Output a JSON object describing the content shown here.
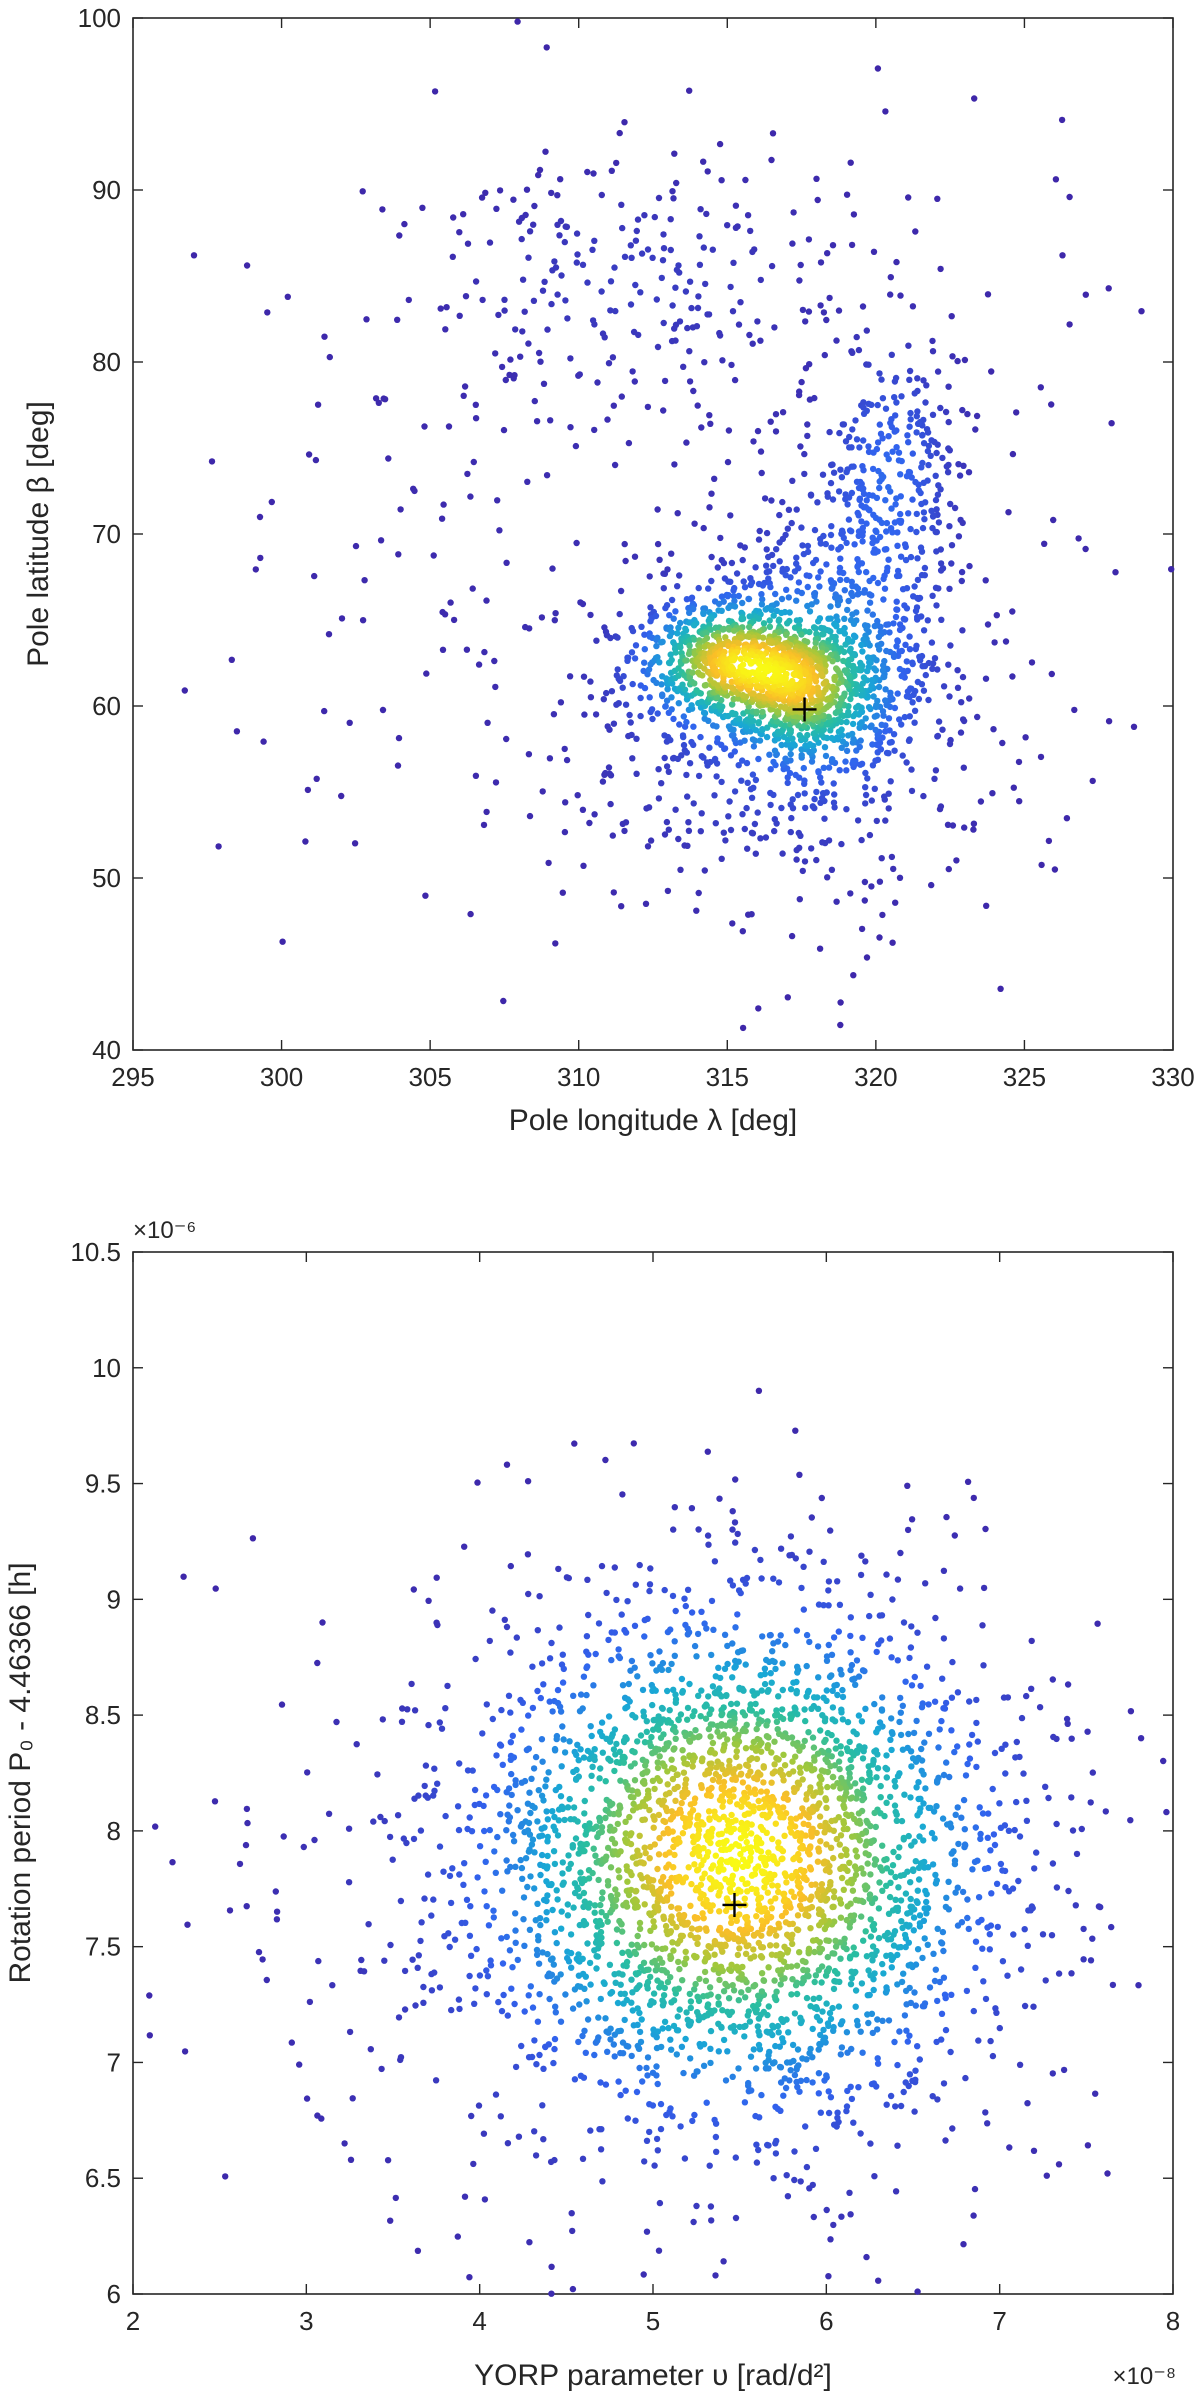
{
  "chart_data": [
    {
      "type": "scatter",
      "title": "",
      "xlabel": "Pole longitude λ [deg]",
      "ylabel": "Pole latitude β [deg]",
      "xlim": [
        295,
        330
      ],
      "ylim": [
        40,
        100
      ],
      "xticks": [
        "295",
        "300",
        "305",
        "310",
        "315",
        "320",
        "325",
        "330"
      ],
      "yticks": [
        "40",
        "50",
        "60",
        "70",
        "80",
        "90",
        "100"
      ],
      "grid": false,
      "colormap": "density (parula: blue → teal → green → yellow)",
      "best_fit_marker": {
        "x": 317.6,
        "y": 59.8,
        "symbol": "+"
      },
      "density_clusters": [
        {
          "cx": 315.0,
          "cy": 62.6,
          "sx": 1.6,
          "sy": 2.0,
          "n": 700
        },
        {
          "cx": 317.6,
          "cy": 61.0,
          "sx": 1.4,
          "sy": 2.3,
          "n": 500
        },
        {
          "cx": 319.0,
          "cy": 64.0,
          "sx": 2.0,
          "sy": 5.0,
          "n": 500
        },
        {
          "cx": 316.5,
          "cy": 58.0,
          "sx": 3.5,
          "sy": 5.0,
          "n": 400
        },
        {
          "cx": 320.5,
          "cy": 74.0,
          "sx": 1.2,
          "sy": 4.0,
          "n": 220
        },
        {
          "cx": 312.0,
          "cy": 85.0,
          "sx": 3.5,
          "sy": 3.5,
          "n": 160
        },
        {
          "cx": 314.0,
          "cy": 70.0,
          "sx": 8.0,
          "sy": 12.0,
          "n": 420
        }
      ]
    },
    {
      "type": "scatter",
      "title": "",
      "xlabel": "YORP parameter υ [rad/d²]",
      "ylabel": "Rotation period P₀ - 4.46366 [h]",
      "x_multiplier": "×10⁻⁸",
      "y_multiplier": "×10⁻⁶",
      "xlim": [
        2,
        8
      ],
      "ylim": [
        6,
        10.5
      ],
      "xticks": [
        "2",
        "3",
        "4",
        "5",
        "6",
        "7",
        "8"
      ],
      "yticks": [
        "6",
        "6.5",
        "7",
        "7.5",
        "8",
        "8.5",
        "9",
        "9.5",
        "10",
        "10.5"
      ],
      "grid": false,
      "colormap": "density (parula: blue → teal → green → yellow)",
      "best_fit_marker": {
        "x": 5.47,
        "y": 7.68,
        "symbol": "+"
      },
      "density_clusters": [
        {
          "cx": 5.5,
          "cy": 7.9,
          "sx": 0.75,
          "sy": 0.55,
          "n": 2800
        },
        {
          "cx": 5.2,
          "cy": 7.6,
          "sx": 1.3,
          "sy": 0.8,
          "n": 600
        }
      ]
    }
  ]
}
